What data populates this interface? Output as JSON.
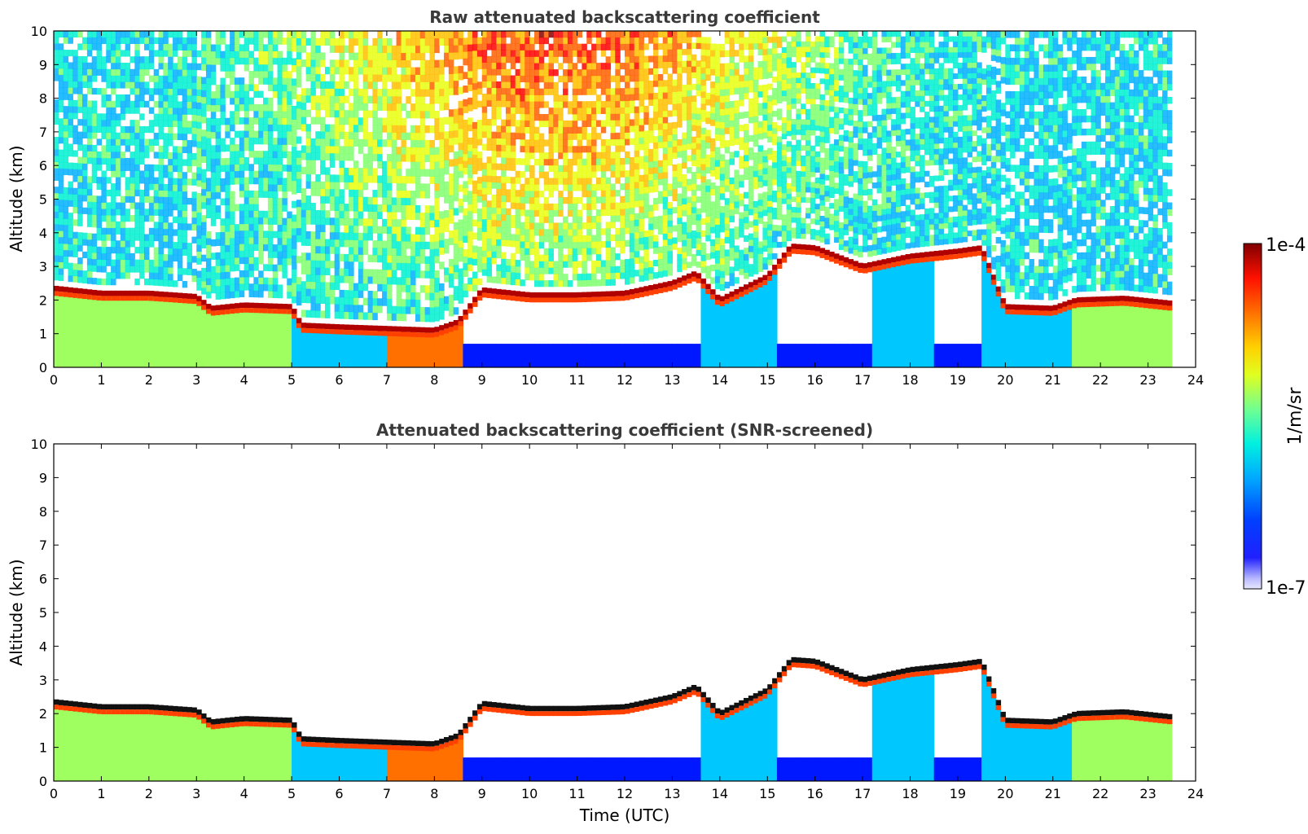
{
  "chart_data": [
    {
      "type": "heatmap",
      "title": "Raw attenuated backscattering coefficient",
      "ylabel": "Altitude (km)",
      "xlabel": "",
      "xlim": [
        0,
        24
      ],
      "ylim": [
        0,
        10
      ],
      "x_ticks": [
        "0",
        "1",
        "2",
        "3",
        "4",
        "5",
        "6",
        "7",
        "8",
        "9",
        "10",
        "11",
        "12",
        "13",
        "14",
        "15",
        "16",
        "17",
        "18",
        "19",
        "20",
        "21",
        "22",
        "23",
        "24"
      ],
      "y_ticks": [
        "0",
        "1",
        "2",
        "3",
        "4",
        "5",
        "6",
        "7",
        "8",
        "9",
        "10"
      ],
      "data_end_hour": 23.5,
      "noise_above_cloud": true,
      "cloud_top_km": [
        [
          0,
          2.35
        ],
        [
          1,
          2.2
        ],
        [
          2,
          2.2
        ],
        [
          3,
          2.1
        ],
        [
          3.3,
          1.75
        ],
        [
          4,
          1.85
        ],
        [
          5,
          1.8
        ],
        [
          5.2,
          1.25
        ],
        [
          6,
          1.2
        ],
        [
          7,
          1.15
        ],
        [
          8,
          1.1
        ],
        [
          8.5,
          1.35
        ],
        [
          9,
          2.3
        ],
        [
          10,
          2.15
        ],
        [
          11,
          2.15
        ],
        [
          12,
          2.2
        ],
        [
          13,
          2.5
        ],
        [
          13.5,
          2.8
        ],
        [
          14,
          2.0
        ],
        [
          15,
          2.7
        ],
        [
          15.5,
          3.6
        ],
        [
          16,
          3.55
        ],
        [
          17,
          3.0
        ],
        [
          18,
          3.3
        ],
        [
          19,
          3.45
        ],
        [
          19.5,
          3.55
        ],
        [
          20,
          1.8
        ],
        [
          21,
          1.75
        ],
        [
          21.5,
          2.0
        ],
        [
          22.5,
          2.05
        ],
        [
          23.5,
          1.9
        ]
      ]
    },
    {
      "type": "heatmap",
      "title": "Attenuated backscattering coefficient (SNR-screened)",
      "ylabel": "Altitude (km)",
      "xlabel": "Time (UTC)",
      "xlim": [
        0,
        24
      ],
      "ylim": [
        0,
        10
      ],
      "x_ticks": [
        "0",
        "1",
        "2",
        "3",
        "4",
        "5",
        "6",
        "7",
        "8",
        "9",
        "10",
        "11",
        "12",
        "13",
        "14",
        "15",
        "16",
        "17",
        "18",
        "19",
        "20",
        "21",
        "22",
        "23",
        "24"
      ],
      "y_ticks": [
        "0",
        "1",
        "2",
        "3",
        "4",
        "5",
        "6",
        "7",
        "8",
        "9",
        "10"
      ],
      "data_end_hour": 23.5,
      "noise_above_cloud": false
    }
  ],
  "colorbar": {
    "label": "1/m/sr",
    "max_label": "1e-4",
    "min_label": "1e-7",
    "colormap": [
      "#eeeeff",
      "#0000ff",
      "#00a0ff",
      "#00ffe0",
      "#80ff80",
      "#ffff00",
      "#ff8000",
      "#ff0000",
      "#800000"
    ]
  }
}
